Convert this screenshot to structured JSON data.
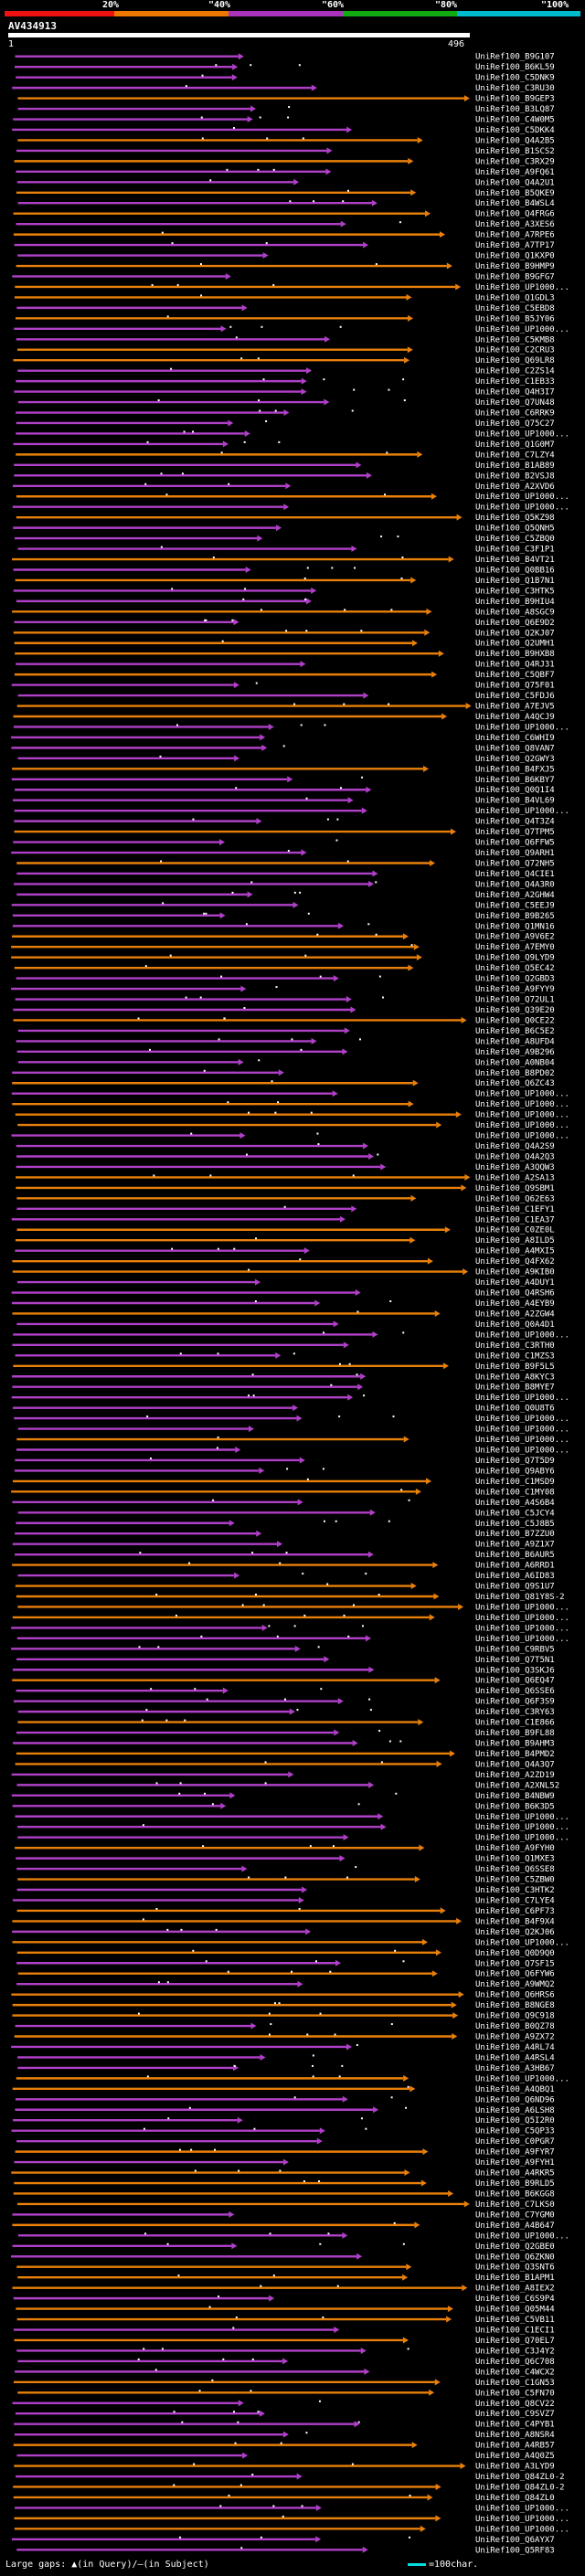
{
  "scale": {
    "labels": [
      "20%",
      "\"40%",
      "\"60%",
      "\"80%",
      "\"100%"
    ],
    "colors": [
      "#e11",
      "#e70",
      "#a3b",
      "#1a1",
      "#0bc"
    ]
  },
  "query": {
    "id": "AV434913",
    "start": "1",
    "end": "496",
    "length": 496
  },
  "hits": [
    "UniRef100_B9G107",
    "UniRef100_B6KL59",
    "UniRef100_C5DNK9",
    "UniRef100_C3RU30",
    "UniRef100_B9GEP3",
    "UniRef100_B3LQ87",
    "UniRef100_C4W0M5",
    "UniRef100_C5DKK4",
    "UniRef100_Q4A2B5",
    "UniRef100_B1SCS2",
    "UniRef100_C3RX29",
    "UniRef100_A9FQ61",
    "UniRef100_Q4A2U1",
    "UniRef100_B5QKE9",
    "UniRef100_B4WSL4",
    "UniRef100_Q4FRG6",
    "UniRef100_A3XES6",
    "UniRef100_A7RPE6",
    "UniRef100_A7TP17",
    "UniRef100_Q1KXP0",
    "UniRef100_B9HMP9",
    "UniRef100_B9GFG7",
    "UniRef100_UP1000...",
    "UniRef100_Q1GDL3",
    "UniRef100_C5EBD8",
    "UniRef100_B5JY06",
    "UniRef100_UP1000...",
    "UniRef100_C5KMB8",
    "UniRef100_C2CRU3",
    "UniRef100_Q69LR8",
    "UniRef100_C2ZS14",
    "UniRef100_C1EB33",
    "UniRef100_Q4H3I7",
    "UniRef100_Q7UN48",
    "UniRef100_C6RRK9",
    "UniRef100_Q75C27",
    "UniRef100_UP1000...",
    "UniRef100_Q1G0M7",
    "UniRef100_C7LZY4",
    "UniRef100_B1AB89",
    "UniRef100_B2VSJ8",
    "UniRef100_A2XVD6",
    "UniRef100_UP1000...",
    "UniRef100_UP1000...",
    "UniRef100_Q5KZ98",
    "UniRef100_Q5QNH5",
    "UniRef100_C5ZBQ0",
    "UniRef100_C3F1P1",
    "UniRef100_B4VT21",
    "UniRef100_Q0BB16",
    "UniRef100_Q1B7N1",
    "UniRef100_C3HTK5",
    "UniRef100_B9HIU4",
    "UniRef100_A8SGC9",
    "UniRef100_Q6E9D2",
    "UniRef100_Q2KJ07",
    "UniRef100_Q2UMH1",
    "UniRef100_B9HXB8",
    "UniRef100_Q4RJ31",
    "UniRef100_C5QBF7",
    "UniRef100_Q75F01",
    "UniRef100_C5FDJ6",
    "UniRef100_A7EJV5",
    "UniRef100_A4QCJ9",
    "UniRef100_UP1000...",
    "UniRef100_C6WHI9",
    "UniRef100_Q8VAN7",
    "UniRef100_Q2GWY3",
    "UniRef100_B4FXJ5",
    "UniRef100_B6KBY7",
    "UniRef100_Q0Q1I4",
    "UniRef100_B4VL69",
    "UniRef100_UP1000...",
    "UniRef100_Q4T3Z4",
    "UniRef100_Q7TPM5",
    "UniRef100_Q6FFW5",
    "UniRef100_Q9ARH1",
    "UniRef100_Q72NH5",
    "UniRef100_Q4CIE1",
    "UniRef100_Q4A3R0",
    "UniRef100_A2GHW4",
    "UniRef100_C5EEJ9",
    "UniRef100_B9B265",
    "UniRef100_Q1MN16",
    "UniRef100_A9V6E2",
    "UniRef100_A7EMY0",
    "UniRef100_Q9LYD9",
    "UniRef100_Q5EC42",
    "UniRef100_Q2GBD3",
    "UniRef100_A9FYY9",
    "UniRef100_Q72UL1",
    "UniRef100_Q39E20",
    "UniRef100_Q0CE22",
    "UniRef100_B6C5E2",
    "UniRef100_A8UFD4",
    "UniRef100_A9B296",
    "UniRef100_A0NB04",
    "UniRef100_B8PD02",
    "UniRef100_Q6ZC43",
    "UniRef100_UP1000...",
    "UniRef100_UP1000...",
    "UniRef100_UP1000...",
    "UniRef100_UP1000...",
    "UniRef100_UP1000...",
    "UniRef100_Q4A2S9",
    "UniRef100_Q4A2Q3",
    "UniRef100_A3QQW3",
    "UniRef100_A2SA13",
    "UniRef100_Q9SBM1",
    "UniRef100_Q62E63",
    "UniRef100_C1EFY1",
    "UniRef100_C1EA37",
    "UniRef100_C0ZE0L",
    "UniRef100_A8ILD5",
    "UniRef100_A4MXI5",
    "UniRef100_Q4FX62",
    "UniRef100_A9KIB0",
    "UniRef100_A4DUY1",
    "UniRef100_Q4RSH6",
    "UniRef100_A4EYB9",
    "UniRef100_A2ZGW4",
    "UniRef100_Q0A4D1",
    "UniRef100_UP1000...",
    "UniRef100_C3RTH0",
    "UniRef100_C1MZS3",
    "UniRef100_B9F5L5",
    "UniRef100_A8KYC3",
    "UniRef100_B8MYE7",
    "UniRef100_UP1000...",
    "UniRef100_Q0U8T6",
    "UniRef100_UP1000...",
    "UniRef100_UP1000...",
    "UniRef100_UP1000...",
    "UniRef100_UP1000...",
    "UniRef100_Q7T5D9",
    "UniRef100_Q9ABY6",
    "UniRef100_C1MSD9",
    "UniRef100_C1MY08",
    "UniRef100_A4S6B4",
    "UniRef100_C5JCY4",
    "UniRef100_C5J8B5",
    "UniRef100_B7ZZU0",
    "UniRef100_A9Z1X7",
    "UniRef100_B6AUR5",
    "UniRef100_A6RRD1",
    "UniRef100_A6ID83",
    "UniRef100_Q9S1U7",
    "UniRef100_Q81Y8S-2",
    "UniRef100_UP1000...",
    "UniRef100_UP1000...",
    "UniRef100_UP1000...",
    "UniRef100_UP1000...",
    "UniRef100_C9RBV5",
    "UniRef100_Q7T5N1",
    "UniRef100_Q3SKJ6",
    "UniRef100_Q6EQ47",
    "UniRef100_Q6SSE6",
    "UniRef100_Q6F3S9",
    "UniRef100_C3RY63",
    "UniRef100_C1E866",
    "UniRef100_B9FL88",
    "UniRef100_B9AHM3",
    "UniRef100_B4PMD2",
    "UniRef100_Q4A3Q7",
    "UniRef100_A2ZD19",
    "UniRef100_A2XNL52",
    "UniRef100_B4NBW9",
    "UniRef100_B6K3D5",
    "UniRef100_UP1000...",
    "UniRef100_UP1000...",
    "UniRef100_UP1000...",
    "UniRef100_A9FYH0",
    "UniRef100_Q1MXE3",
    "UniRef100_Q6SSE8",
    "UniRef100_C5ZBW0",
    "UniRef100_C3HTK2",
    "UniRef100_C7LYE4",
    "UniRef100_C6PF73",
    "UniRef100_B4F9X4",
    "UniRef100_Q2KJ06",
    "UniRef100_UP1000...",
    "UniRef100_Q0D9Q0",
    "UniRef100_Q7SF15",
    "UniRef100_Q6FYW6",
    "UniRef100_A9WMQ2",
    "UniRef100_Q6HRS6",
    "UniRef100_B8NGE8",
    "UniRef100_Q9C918",
    "UniRef100_B0QZ78",
    "UniRef100_A9ZX72",
    "UniRef100_A4RL74",
    "UniRef100_A4RSL4",
    "UniRef100_A3HB67",
    "UniRef100_UP1000...",
    "UniRef100_A4QBQ1",
    "UniRef100_Q6ND96",
    "UniRef100_A6LSH8",
    "UniRef100_Q5I2R0",
    "UniRef100_C5QP33",
    "UniRef100_C0PGR7",
    "UniRef100_A9FYR7",
    "UniRef100_A9FYH1",
    "UniRef100_A4RKR5",
    "UniRef100_B9RLD5",
    "UniRef100_B6KGG8",
    "UniRef100_C7LKS0",
    "UniRef100_C7YGM0",
    "UniRef100_A4B647",
    "UniRef100_UP1000...",
    "UniRef100_Q2GBE0",
    "UniRef100_Q6ZKN0",
    "UniRef100_Q3SNT6",
    "UniRef100_B1APM1",
    "UniRef100_A8IEX2",
    "UniRef100_C6S9P4",
    "UniRef100_Q05M44",
    "UniRef100_C5VB11",
    "UniRef100_C1ECI1",
    "UniRef100_Q70EL7",
    "UniRef100_C3J4Y2",
    "UniRef100_Q6C708",
    "UniRef100_C4WCX2",
    "UniRef100_C1GN53",
    "UniRef100_C5FN70",
    "UniRef100_Q8CV22",
    "UniRef100_C9SVZ7",
    "UniRef100_C4PYB1",
    "UniRef100_A8NSR4",
    "UniRef100_A4RB57",
    "UniRef100_A4Q0Z5",
    "UniRef100_A3LYD9",
    "UniRef100_Q84ZL0-2",
    "UniRef100_Q84ZL0-2",
    "UniRef100_Q84ZL0",
    "UniRef100_UP1000...",
    "UniRef100_UP1000...",
    "UniRef100_UP1000...",
    "UniRef100_Q6AYX7",
    "UniRef100_Q5RF83"
  ],
  "legend": {
    "left": "Large gaps: ▲(in Query)/—(in Subject)",
    "right": "=100char."
  }
}
